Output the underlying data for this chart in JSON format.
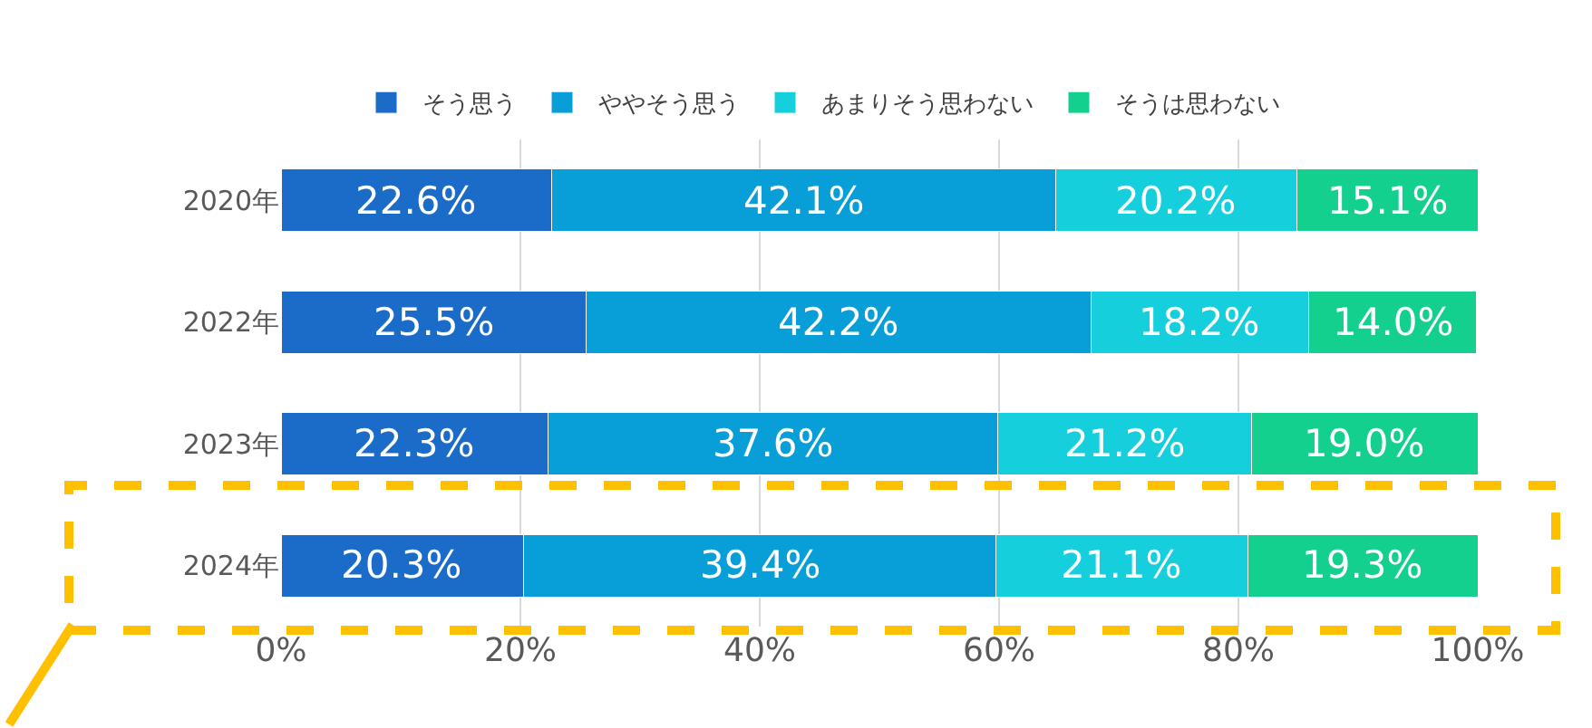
{
  "chart_data": {
    "type": "bar",
    "orientation": "horizontal",
    "stacked": true,
    "legend": "top",
    "categories": [
      "2020年",
      "2022年",
      "2023年",
      "2024年"
    ],
    "series": [
      {
        "name": "そう思う",
        "color": "#1a6cc8",
        "values": [
          22.6,
          25.5,
          22.3,
          20.3
        ],
        "value_labels": [
          "22.6%",
          "25.5%",
          "22.3%",
          "20.3%"
        ]
      },
      {
        "name": "ややそう思う",
        "color": "#089fd8",
        "values": [
          42.1,
          42.2,
          37.6,
          39.4
        ],
        "value_labels": [
          "42.1%",
          "42.2%",
          "37.6%",
          "39.4%"
        ]
      },
      {
        "name": "あまりそう思わない",
        "color": "#16cfdc",
        "values": [
          20.2,
          18.2,
          21.2,
          21.1
        ],
        "value_labels": [
          "20.2%",
          "18.2%",
          "21.2%",
          "21.1%"
        ]
      },
      {
        "name": "そうは思わない",
        "color": "#14d08f",
        "values": [
          15.1,
          14.0,
          19.0,
          19.3
        ],
        "value_labels": [
          "15.1%",
          "14.0%",
          "19.0%",
          "19.3%"
        ]
      }
    ],
    "xlim": [
      0,
      100
    ],
    "xticks": [
      {
        "value": 0,
        "label": "0%"
      },
      {
        "value": 20,
        "label": "20%"
      },
      {
        "value": 40,
        "label": "40%"
      },
      {
        "value": 60,
        "label": "60%"
      },
      {
        "value": 80,
        "label": "80%"
      },
      {
        "value": 100,
        "label": "100%"
      }
    ],
    "grid": "x"
  }
}
